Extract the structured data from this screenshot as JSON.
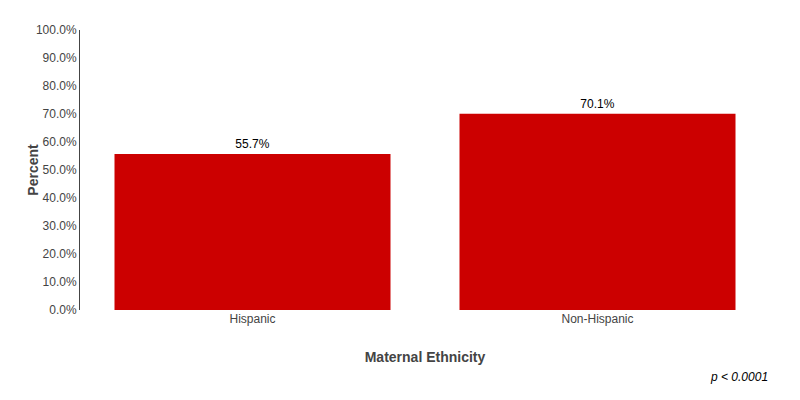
{
  "chart_data": {
    "type": "bar",
    "categories": [
      "Hispanic",
      "Non-Hispanic"
    ],
    "values": [
      55.7,
      70.1
    ],
    "value_labels": [
      "55.7%",
      "70.1%"
    ],
    "data_labels": true,
    "color": "#cc0000",
    "xlabel": "Maternal Ethnicity",
    "ylabel": "Percent",
    "ylim": [
      0,
      100
    ],
    "yticks": [
      {
        "value": 0,
        "label": "0.0%"
      },
      {
        "value": 10,
        "label": "10.0%"
      },
      {
        "value": 20,
        "label": "20.0%"
      },
      {
        "value": 30,
        "label": "30.0%"
      },
      {
        "value": 40,
        "label": "40.0%"
      },
      {
        "value": 50,
        "label": "50.0%"
      },
      {
        "value": 60,
        "label": "60.0%"
      },
      {
        "value": 70,
        "label": "70.0%"
      },
      {
        "value": 80,
        "label": "80.0%"
      },
      {
        "value": 90,
        "label": "90.0%"
      },
      {
        "value": 100,
        "label": "100.0%"
      }
    ],
    "grid": false,
    "annotation": "p < 0.0001"
  }
}
